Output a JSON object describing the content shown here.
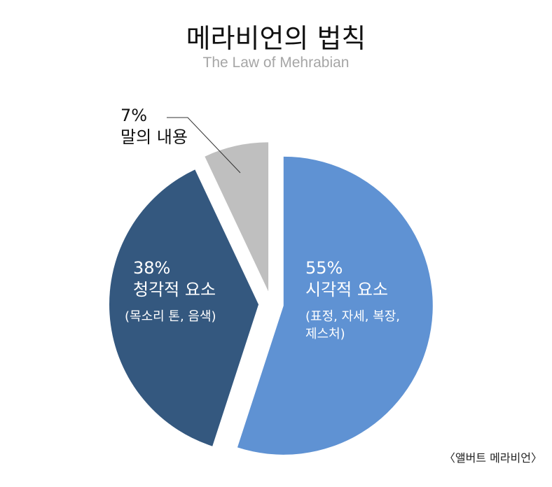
{
  "title": "메라비언의 법칙",
  "subtitle": "The Law of Mehrabian",
  "caption": "〈앨버트 메라비언〉",
  "colors": {
    "visual": "#5f92d3",
    "vocal": "#34587f",
    "verbal": "#bfbfbf",
    "leader": "#333333"
  },
  "chart_data": {
    "type": "pie",
    "slices": [
      {
        "pct_label": "55%",
        "name": "시각적 요소",
        "detail": "(표정, 자세, 복장, 제스처)",
        "value": 55,
        "color": "#5f92d3"
      },
      {
        "pct_label": "38%",
        "name": "청각적 요소",
        "detail": "(목소리 톤, 음색)",
        "value": 38,
        "color": "#34587f"
      },
      {
        "pct_label": "7%",
        "name": "말의 내용",
        "value": 7,
        "color": "#bfbfbf"
      }
    ]
  }
}
